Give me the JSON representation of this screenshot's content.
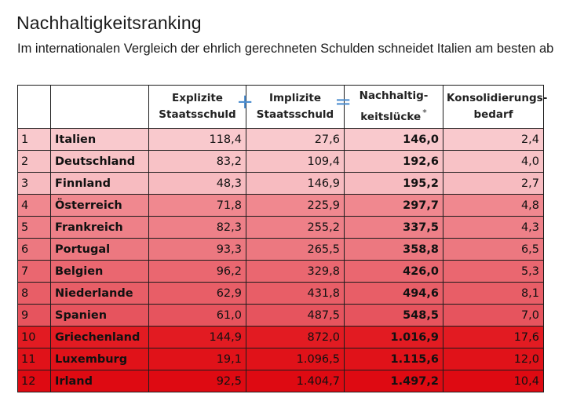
{
  "title": "Nachhaltigkeitsranking",
  "subtitle": "Im internationalen Vergleich der ehrlich gerechneten Schulden schneidet Italien am besten ab",
  "table": {
    "headers": {
      "explicit_line1": "Explizite",
      "explicit_line2": "Staatsschuld",
      "plus": "+",
      "implicit_line1": "Implizite",
      "implicit_line2": "Staatsschuld",
      "equals": "=",
      "gap_line1": "Nachhaltig-",
      "gap_line2": "keitslücke",
      "gap_mark": "*",
      "consol_line1": "Konsolidierungs-",
      "consol_line2": "bedarf"
    },
    "rows": [
      {
        "rank": "1",
        "country": "Italien",
        "explicit": "118,4",
        "implicit": "27,6",
        "gap": "146,0",
        "consolidation": "2,4",
        "color": "#f9c9cd"
      },
      {
        "rank": "2",
        "country": "Deutschland",
        "explicit": "83,2",
        "implicit": "109,4",
        "gap": "192,6",
        "consolidation": "4,0",
        "color": "#f8c2c6"
      },
      {
        "rank": "3",
        "country": "Finnland",
        "explicit": "48,3",
        "implicit": "146,9",
        "gap": "195,2",
        "consolidation": "2,7",
        "color": "#f7bbc0"
      },
      {
        "rank": "4",
        "country": "Österreich",
        "explicit": "71,8",
        "implicit": "225,9",
        "gap": "297,7",
        "consolidation": "4,8",
        "color": "#f0888f"
      },
      {
        "rank": "5",
        "country": "Frankreich",
        "explicit": "82,3",
        "implicit": "255,2",
        "gap": "337,5",
        "consolidation": "4,3",
        "color": "#ee8088"
      },
      {
        "rank": "6",
        "country": "Portugal",
        "explicit": "93,3",
        "implicit": "265,5",
        "gap": "358,8",
        "consolidation": "6,5",
        "color": "#ec7880"
      },
      {
        "rank": "7",
        "country": "Belgien",
        "explicit": "96,2",
        "implicit": "329,8",
        "gap": "426,0",
        "consolidation": "5,3",
        "color": "#ea6770"
      },
      {
        "rank": "8",
        "country": "Niederlande",
        "explicit": "62,9",
        "implicit": "431,8",
        "gap": "494,6",
        "consolidation": "8,1",
        "color": "#e85e67"
      },
      {
        "rank": "9",
        "country": "Spanien",
        "explicit": "61,0",
        "implicit": "487,5",
        "gap": "548,5",
        "consolidation": "7,0",
        "color": "#e6545e"
      },
      {
        "rank": "10",
        "country": "Griechenland",
        "explicit": "144,9",
        "implicit": "872,0",
        "gap": "1.016,9",
        "consolidation": "17,6",
        "color": "#e21b22"
      },
      {
        "rank": "11",
        "country": "Luxemburg",
        "explicit": "19,1",
        "implicit": "1.096,5",
        "gap": "1.115,6",
        "consolidation": "12,0",
        "color": "#e01219"
      },
      {
        "rank": "12",
        "country": "Irland",
        "explicit": "92,5",
        "implicit": "1.404,7",
        "gap": "1.497,2",
        "consolidation": "10,4",
        "color": "#de0a12"
      }
    ]
  }
}
